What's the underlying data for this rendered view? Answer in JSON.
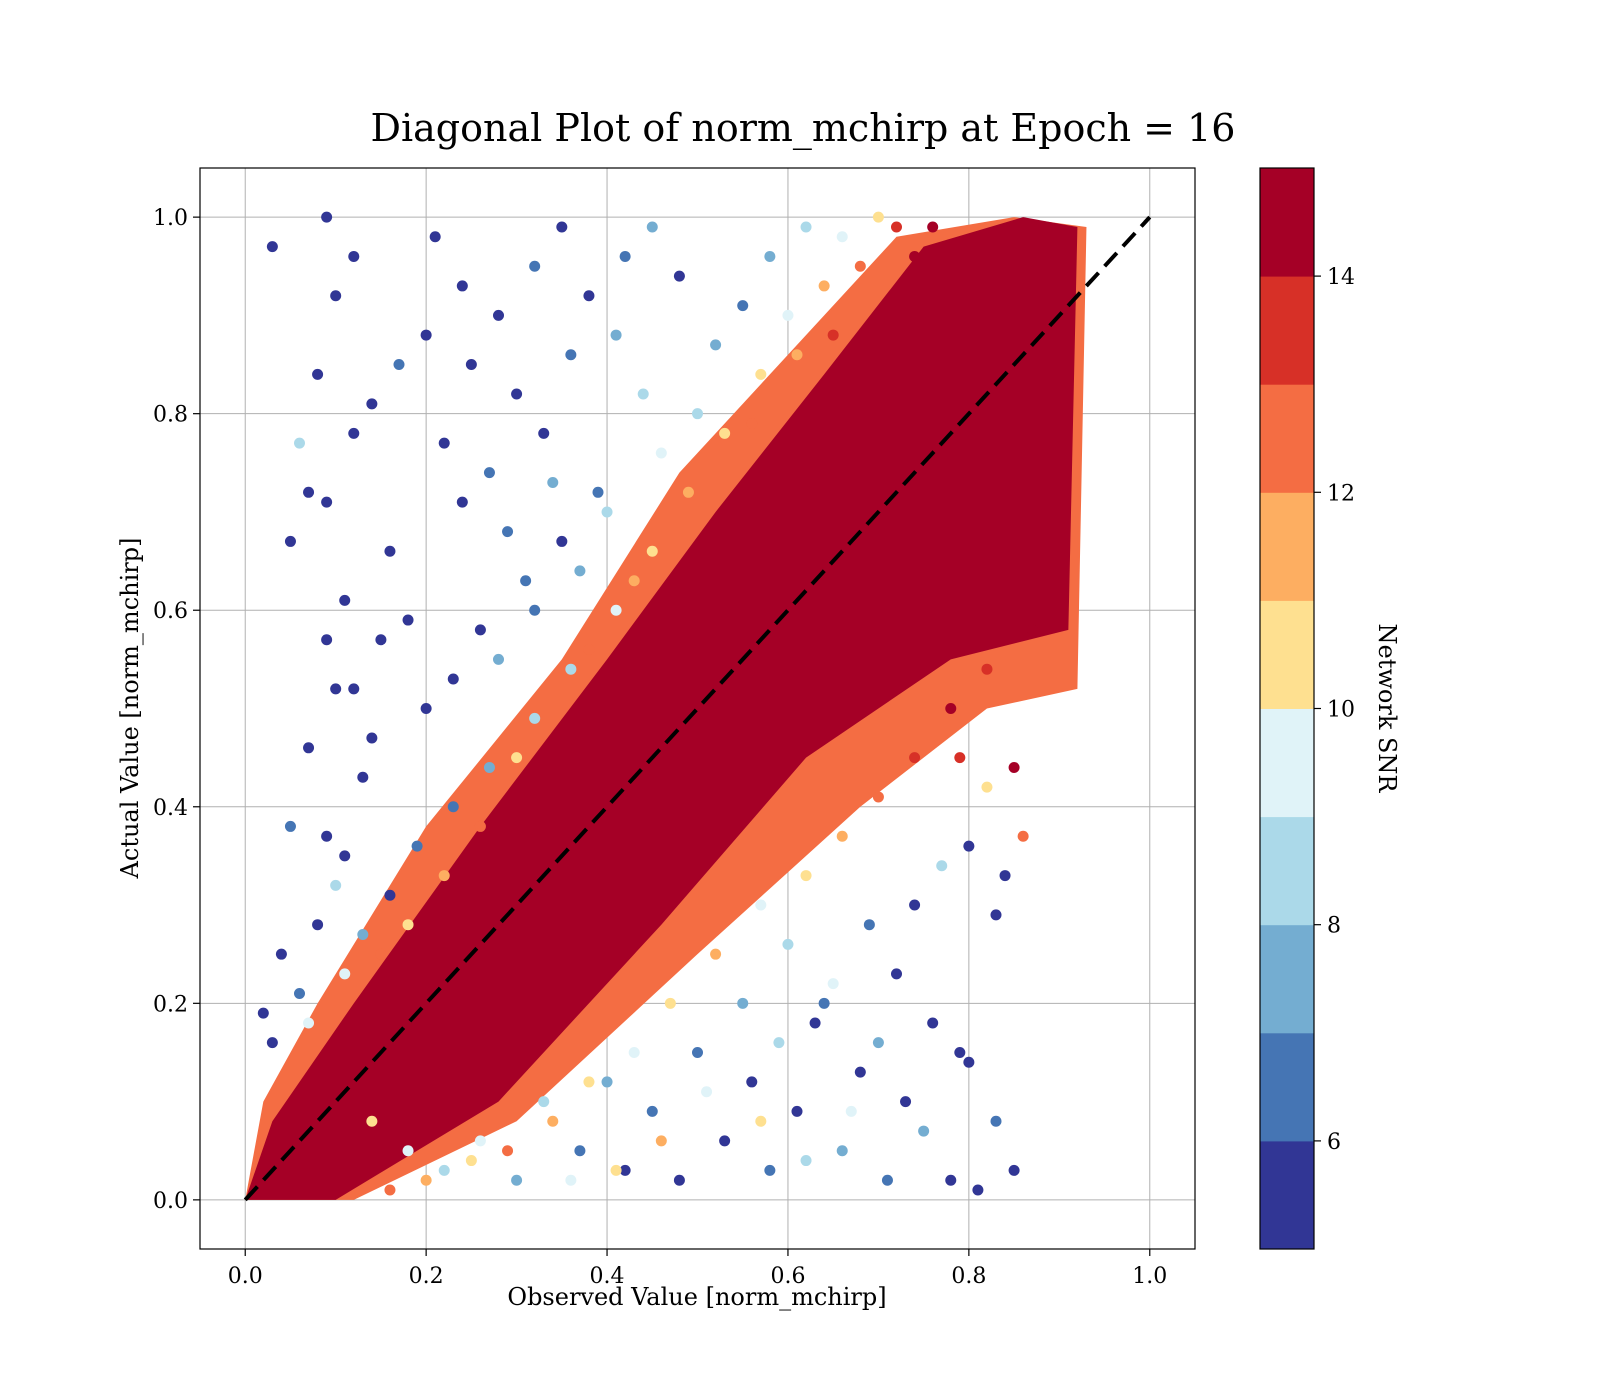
{
  "chart_data": {
    "type": "scatter",
    "title": "Diagonal Plot of norm_mchirp at Epoch = 16",
    "xlabel": "Observed Value [norm_mchirp]",
    "ylabel": "Actual Value [norm_mchirp]",
    "xlim": [
      -0.05,
      1.05
    ],
    "ylim": [
      -0.05,
      1.05
    ],
    "xticks": [
      "0.0",
      "0.2",
      "0.4",
      "0.6",
      "0.8",
      "1.0"
    ],
    "yticks": [
      "0.0",
      "0.2",
      "0.4",
      "0.6",
      "0.8",
      "1.0"
    ],
    "grid": true,
    "reference_line": {
      "style": "dashed",
      "color": "#000000",
      "x": [
        0.0,
        1.0
      ],
      "y": [
        0.0,
        1.0
      ]
    },
    "colorbar": {
      "label": "Network SNR",
      "range": [
        5,
        15
      ],
      "ticks": [
        "6",
        "8",
        "10",
        "12",
        "14"
      ],
      "tick_values": [
        6,
        8,
        10,
        12,
        14
      ],
      "boundaries": [
        5,
        6,
        7,
        8,
        9,
        10,
        11,
        12,
        13,
        14,
        15
      ],
      "colors": [
        "#313695",
        "#4575b4",
        "#74add1",
        "#abd9e9",
        "#e0f3f8",
        "#fee090",
        "#fdae61",
        "#f46d43",
        "#d73027",
        "#a50026"
      ]
    },
    "points": [
      [
        0.03,
        0.97,
        5
      ],
      [
        0.09,
        1.0,
        5
      ],
      [
        0.12,
        0.96,
        5
      ],
      [
        0.1,
        0.92,
        5
      ],
      [
        0.08,
        0.84,
        5
      ],
      [
        0.06,
        0.77,
        8
      ],
      [
        0.07,
        0.72,
        5
      ],
      [
        0.05,
        0.67,
        5
      ],
      [
        0.09,
        0.71,
        5
      ],
      [
        0.11,
        0.61,
        5
      ],
      [
        0.12,
        0.78,
        5
      ],
      [
        0.14,
        0.81,
        5
      ],
      [
        0.17,
        0.85,
        6
      ],
      [
        0.2,
        0.88,
        5
      ],
      [
        0.16,
        0.66,
        5
      ],
      [
        0.09,
        0.57,
        5
      ],
      [
        0.12,
        0.52,
        5
      ],
      [
        0.14,
        0.47,
        5
      ],
      [
        0.05,
        0.38,
        6
      ],
      [
        0.09,
        0.37,
        5
      ],
      [
        0.1,
        0.52,
        5
      ],
      [
        0.07,
        0.46,
        5
      ],
      [
        0.15,
        0.57,
        5
      ],
      [
        0.18,
        0.59,
        5
      ],
      [
        0.13,
        0.43,
        5
      ],
      [
        0.11,
        0.35,
        5
      ],
      [
        0.1,
        0.32,
        8
      ],
      [
        0.08,
        0.28,
        5
      ],
      [
        0.04,
        0.25,
        5
      ],
      [
        0.06,
        0.21,
        6
      ],
      [
        0.02,
        0.19,
        5
      ],
      [
        0.03,
        0.16,
        5
      ],
      [
        0.07,
        0.18,
        9
      ],
      [
        0.21,
        0.98,
        5
      ],
      [
        0.24,
        0.93,
        5
      ],
      [
        0.28,
        0.9,
        5
      ],
      [
        0.32,
        0.95,
        6
      ],
      [
        0.35,
        0.99,
        5
      ],
      [
        0.25,
        0.85,
        5
      ],
      [
        0.3,
        0.82,
        5
      ],
      [
        0.22,
        0.77,
        5
      ],
      [
        0.27,
        0.74,
        6
      ],
      [
        0.33,
        0.78,
        5
      ],
      [
        0.36,
        0.86,
        6
      ],
      [
        0.38,
        0.92,
        5
      ],
      [
        0.42,
        0.96,
        6
      ],
      [
        0.45,
        0.99,
        7
      ],
      [
        0.48,
        0.94,
        5
      ],
      [
        0.41,
        0.88,
        7
      ],
      [
        0.44,
        0.82,
        8
      ],
      [
        0.39,
        0.72,
        6
      ],
      [
        0.35,
        0.67,
        5
      ],
      [
        0.31,
        0.63,
        6
      ],
      [
        0.26,
        0.58,
        5
      ],
      [
        0.23,
        0.53,
        5
      ],
      [
        0.2,
        0.5,
        5
      ],
      [
        0.28,
        0.55,
        7
      ],
      [
        0.32,
        0.6,
        6
      ],
      [
        0.37,
        0.64,
        7
      ],
      [
        0.4,
        0.7,
        8
      ],
      [
        0.46,
        0.76,
        9
      ],
      [
        0.5,
        0.8,
        8
      ],
      [
        0.52,
        0.87,
        7
      ],
      [
        0.55,
        0.91,
        6
      ],
      [
        0.58,
        0.96,
        7
      ],
      [
        0.62,
        0.99,
        8
      ],
      [
        0.6,
        0.9,
        9
      ],
      [
        0.57,
        0.84,
        10
      ],
      [
        0.53,
        0.78,
        10
      ],
      [
        0.49,
        0.72,
        11
      ],
      [
        0.45,
        0.66,
        10
      ],
      [
        0.41,
        0.6,
        9
      ],
      [
        0.36,
        0.54,
        8
      ],
      [
        0.32,
        0.49,
        8
      ],
      [
        0.27,
        0.44,
        7
      ],
      [
        0.23,
        0.4,
        6
      ],
      [
        0.19,
        0.36,
        6
      ],
      [
        0.16,
        0.31,
        5
      ],
      [
        0.13,
        0.27,
        7
      ],
      [
        0.11,
        0.23,
        9
      ],
      [
        0.66,
        0.98,
        9
      ],
      [
        0.7,
        1.0,
        10
      ],
      [
        0.64,
        0.93,
        11
      ],
      [
        0.68,
        0.95,
        12
      ],
      [
        0.61,
        0.86,
        11
      ],
      [
        0.56,
        0.79,
        12
      ],
      [
        0.65,
        0.88,
        13
      ],
      [
        0.72,
        0.99,
        13
      ],
      [
        0.74,
        0.96,
        14
      ],
      [
        0.76,
        0.99,
        15
      ],
      [
        0.24,
        0.71,
        5
      ],
      [
        0.29,
        0.68,
        6
      ],
      [
        0.34,
        0.73,
        7
      ],
      [
        0.43,
        0.63,
        11
      ],
      [
        0.38,
        0.56,
        12
      ],
      [
        0.3,
        0.45,
        10
      ],
      [
        0.26,
        0.38,
        12
      ],
      [
        0.22,
        0.33,
        11
      ],
      [
        0.18,
        0.28,
        10
      ],
      [
        0.15,
        0.25,
        12
      ],
      [
        0.14,
        0.08,
        10
      ],
      [
        0.18,
        0.05,
        9
      ],
      [
        0.22,
        0.03,
        8
      ],
      [
        0.26,
        0.06,
        9
      ],
      [
        0.3,
        0.02,
        7
      ],
      [
        0.33,
        0.1,
        8
      ],
      [
        0.37,
        0.05,
        6
      ],
      [
        0.4,
        0.12,
        7
      ],
      [
        0.42,
        0.03,
        5
      ],
      [
        0.45,
        0.09,
        6
      ],
      [
        0.48,
        0.02,
        5
      ],
      [
        0.5,
        0.15,
        6
      ],
      [
        0.53,
        0.06,
        5
      ],
      [
        0.56,
        0.12,
        5
      ],
      [
        0.58,
        0.03,
        6
      ],
      [
        0.61,
        0.09,
        5
      ],
      [
        0.63,
        0.18,
        5
      ],
      [
        0.66,
        0.05,
        7
      ],
      [
        0.68,
        0.13,
        5
      ],
      [
        0.71,
        0.02,
        6
      ],
      [
        0.73,
        0.1,
        5
      ],
      [
        0.75,
        0.07,
        7
      ],
      [
        0.78,
        0.02,
        5
      ],
      [
        0.8,
        0.14,
        5
      ],
      [
        0.81,
        0.01,
        5
      ],
      [
        0.83,
        0.08,
        6
      ],
      [
        0.85,
        0.03,
        5
      ],
      [
        0.79,
        0.15,
        5
      ],
      [
        0.76,
        0.18,
        5
      ],
      [
        0.72,
        0.23,
        5
      ],
      [
        0.69,
        0.28,
        6
      ],
      [
        0.74,
        0.3,
        5
      ],
      [
        0.77,
        0.34,
        8
      ],
      [
        0.8,
        0.36,
        5
      ],
      [
        0.84,
        0.33,
        5
      ],
      [
        0.83,
        0.29,
        5
      ],
      [
        0.86,
        0.37,
        12
      ],
      [
        0.82,
        0.42,
        10
      ],
      [
        0.79,
        0.45,
        13
      ],
      [
        0.85,
        0.44,
        14
      ],
      [
        0.65,
        0.22,
        9
      ],
      [
        0.6,
        0.26,
        8
      ],
      [
        0.57,
        0.3,
        9
      ],
      [
        0.62,
        0.33,
        10
      ],
      [
        0.66,
        0.37,
        11
      ],
      [
        0.7,
        0.41,
        12
      ],
      [
        0.74,
        0.45,
        13
      ],
      [
        0.78,
        0.5,
        14
      ],
      [
        0.82,
        0.54,
        13
      ],
      [
        0.87,
        0.58,
        14
      ],
      [
        0.52,
        0.25,
        11
      ],
      [
        0.47,
        0.2,
        10
      ],
      [
        0.43,
        0.15,
        9
      ],
      [
        0.38,
        0.12,
        10
      ],
      [
        0.34,
        0.08,
        11
      ],
      [
        0.29,
        0.05,
        12
      ],
      [
        0.25,
        0.04,
        10
      ],
      [
        0.2,
        0.02,
        11
      ],
      [
        0.16,
        0.01,
        12
      ],
      [
        0.55,
        0.2,
        7
      ],
      [
        0.59,
        0.16,
        8
      ],
      [
        0.64,
        0.2,
        6
      ],
      [
        0.7,
        0.16,
        7
      ],
      [
        0.67,
        0.09,
        9
      ],
      [
        0.62,
        0.04,
        8
      ],
      [
        0.57,
        0.08,
        10
      ],
      [
        0.51,
        0.11,
        9
      ],
      [
        0.46,
        0.06,
        11
      ],
      [
        0.41,
        0.03,
        10
      ],
      [
        0.36,
        0.02,
        9
      ]
    ]
  }
}
